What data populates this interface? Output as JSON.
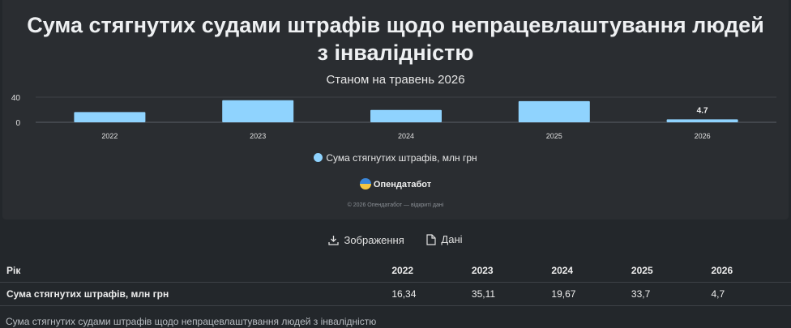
{
  "chart_data": {
    "type": "bar",
    "title": "Сума стягнутих судами штрафів щодо непрацевлаштування людей з інвалідністю",
    "subtitle": "Станом на травень 2026",
    "categories": [
      "2022",
      "2023",
      "2024",
      "2025",
      "2026"
    ],
    "series": [
      {
        "name": "Сума стягнутих штрафів, млн грн",
        "values": [
          16.34,
          35.11,
          19.67,
          33.7,
          4.7
        ],
        "color": "#8fd3fe"
      }
    ],
    "y_ticks": [
      "40",
      "0"
    ],
    "ylim": [
      0,
      40
    ],
    "data_labels": {
      "4": "4.7"
    },
    "legend_position": "bottom",
    "grid": true
  },
  "brand": "Опендатабот",
  "copyright": "© 2026 Опендатабот — відкриті дані",
  "actions": {
    "image_label": "Зображення",
    "data_label": "Дані"
  },
  "table": {
    "header_label": "Рік",
    "years": [
      "2022",
      "2023",
      "2024",
      "2025",
      "2026"
    ],
    "row_label": "Сума стягнутих штрафів, млн грн",
    "values": [
      "16,34",
      "35,11",
      "19,67",
      "33,7",
      "4,7"
    ]
  },
  "caption": "Сума стягнутих судами штрафів щодо непрацевлаштування людей з інвалідністю"
}
